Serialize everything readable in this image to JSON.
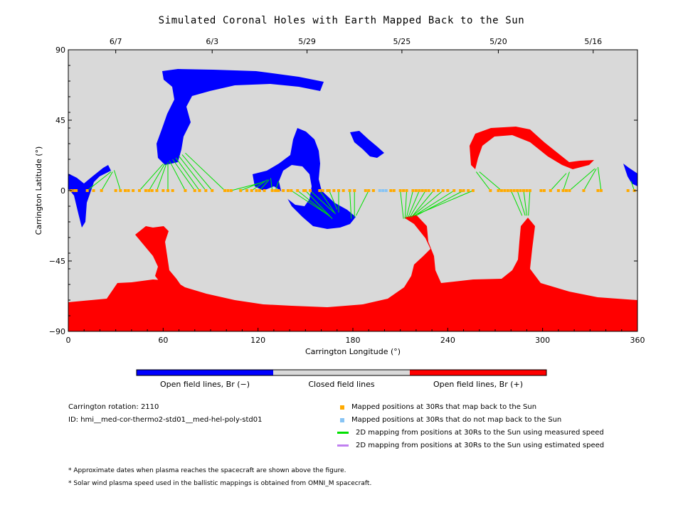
{
  "chart_data": {
    "type": "scatter",
    "title": "Simulated Coronal Holes with Earth Mapped Back to the Sun",
    "xlabel": "Carrington Longitude (°)",
    "ylabel": "Carrington Latitude (°)",
    "xlim": [
      0,
      360
    ],
    "ylim": [
      -90,
      90
    ],
    "x_ticks": [
      0,
      60,
      120,
      180,
      240,
      300,
      360
    ],
    "y_ticks": [
      90,
      45,
      0,
      -45,
      -90
    ],
    "y_tick_labels": [
      "90",
      "45",
      "0",
      "−45",
      "−90"
    ],
    "top_axis": {
      "ticks": [
        {
          "lon": 30,
          "label": "6/7"
        },
        {
          "lon": 91,
          "label": "6/3"
        },
        {
          "lon": 151,
          "label": "5/29"
        },
        {
          "lon": 211,
          "label": "5/25"
        },
        {
          "lon": 272,
          "label": "5/20"
        },
        {
          "lon": 332,
          "label": "5/16"
        }
      ]
    },
    "colors": {
      "background": "#d9d9d9",
      "negative": "#0000ff",
      "positive": "#ff0000",
      "mapped": "#ffaa00",
      "unmapped": "#88c4f4",
      "measured_line": "#00e000",
      "estimated_line": "#c080f0"
    },
    "mapped_points": [
      2,
      4,
      5,
      12,
      16,
      21,
      30,
      33,
      36,
      38,
      41,
      45,
      49,
      51,
      53,
      56,
      60,
      63,
      66,
      74,
      80,
      83,
      87,
      91,
      99,
      101,
      103,
      109,
      113,
      116,
      119,
      121,
      124,
      129,
      131,
      132,
      133,
      136,
      139,
      141,
      145,
      149,
      150,
      153,
      159,
      161,
      164,
      165,
      168,
      171,
      174,
      178,
      181,
      188,
      190,
      193,
      204,
      206,
      210,
      212,
      214,
      218,
      220,
      222,
      224,
      226,
      228,
      231,
      234,
      237,
      240,
      244,
      248,
      250,
      253,
      256,
      267,
      272,
      274,
      276,
      278,
      280,
      282,
      284,
      286,
      288,
      290,
      292,
      299,
      301,
      305,
      310,
      313,
      315,
      317,
      326,
      335,
      337,
      354,
      358
    ],
    "unmapped_points": [
      197,
      199,
      201
    ],
    "mappings": [
      {
        "from": [
          12,
          0
        ],
        "to": [
          27,
          12
        ]
      },
      {
        "from": [
          21,
          0
        ],
        "to": [
          28,
          12
        ]
      },
      {
        "from": [
          33,
          0
        ],
        "to": [
          29,
          13
        ]
      },
      {
        "from": [
          45,
          0
        ],
        "to": [
          60,
          17
        ]
      },
      {
        "from": [
          51,
          0
        ],
        "to": [
          61,
          17
        ]
      },
      {
        "from": [
          56,
          0
        ],
        "to": [
          62,
          17
        ]
      },
      {
        "from": [
          63,
          0
        ],
        "to": [
          63,
          18
        ]
      },
      {
        "from": [
          74,
          0
        ],
        "to": [
          64,
          19
        ]
      },
      {
        "from": [
          80,
          0
        ],
        "to": [
          66,
          20
        ]
      },
      {
        "from": [
          83,
          0
        ],
        "to": [
          68,
          21
        ]
      },
      {
        "from": [
          87,
          0
        ],
        "to": [
          70,
          22
        ]
      },
      {
        "from": [
          91,
          0
        ],
        "to": [
          72,
          23
        ]
      },
      {
        "from": [
          99,
          0
        ],
        "to": [
          74,
          24
        ]
      },
      {
        "from": [
          103,
          0
        ],
        "to": [
          122,
          5
        ]
      },
      {
        "from": [
          109,
          0
        ],
        "to": [
          124,
          6
        ]
      },
      {
        "from": [
          116,
          0
        ],
        "to": [
          126,
          7
        ]
      },
      {
        "from": [
          121,
          0
        ],
        "to": [
          127,
          7
        ]
      },
      {
        "from": [
          129,
          0
        ],
        "to": [
          128,
          8
        ]
      },
      {
        "from": [
          131,
          0
        ],
        "to": [
          133,
          6
        ]
      },
      {
        "from": [
          141,
          0
        ],
        "to": [
          165,
          -16
        ]
      },
      {
        "from": [
          145,
          0
        ],
        "to": [
          166,
          -17
        ]
      },
      {
        "from": [
          150,
          0
        ],
        "to": [
          167,
          -18
        ]
      },
      {
        "from": [
          153,
          0
        ],
        "to": [
          168,
          -14
        ]
      },
      {
        "from": [
          159,
          0
        ],
        "to": [
          169,
          -15
        ]
      },
      {
        "from": [
          165,
          0
        ],
        "to": [
          170,
          -12
        ]
      },
      {
        "from": [
          171,
          0
        ],
        "to": [
          171,
          -14
        ]
      },
      {
        "from": [
          178,
          0
        ],
        "to": [
          179,
          -18
        ]
      },
      {
        "from": [
          181,
          0
        ],
        "to": [
          181,
          -17
        ]
      },
      {
        "from": [
          190,
          0
        ],
        "to": [
          182,
          -16
        ]
      },
      {
        "from": [
          210,
          0
        ],
        "to": [
          212,
          -18
        ]
      },
      {
        "from": [
          214,
          0
        ],
        "to": [
          213,
          -18
        ]
      },
      {
        "from": [
          218,
          0
        ],
        "to": [
          214,
          -17
        ]
      },
      {
        "from": [
          222,
          0
        ],
        "to": [
          215,
          -17
        ]
      },
      {
        "from": [
          226,
          0
        ],
        "to": [
          216,
          -17
        ]
      },
      {
        "from": [
          231,
          0
        ],
        "to": [
          217,
          -17
        ]
      },
      {
        "from": [
          237,
          0
        ],
        "to": [
          218,
          -16
        ]
      },
      {
        "from": [
          244,
          0
        ],
        "to": [
          219,
          -16
        ]
      },
      {
        "from": [
          250,
          0
        ],
        "to": [
          220,
          -16
        ]
      },
      {
        "from": [
          256,
          0
        ],
        "to": [
          221,
          -15
        ]
      },
      {
        "from": [
          267,
          0
        ],
        "to": [
          258,
          12
        ]
      },
      {
        "from": [
          274,
          0
        ],
        "to": [
          260,
          12
        ]
      },
      {
        "from": [
          280,
          0
        ],
        "to": [
          287,
          -16
        ]
      },
      {
        "from": [
          284,
          0
        ],
        "to": [
          289,
          -16
        ]
      },
      {
        "from": [
          288,
          0
        ],
        "to": [
          290,
          -16
        ]
      },
      {
        "from": [
          292,
          0
        ],
        "to": [
          291,
          -16
        ]
      },
      {
        "from": [
          305,
          0
        ],
        "to": [
          315,
          11
        ]
      },
      {
        "from": [
          313,
          0
        ],
        "to": [
          317,
          12
        ]
      },
      {
        "from": [
          317,
          0
        ],
        "to": [
          333,
          14
        ]
      },
      {
        "from": [
          326,
          0
        ],
        "to": [
          334,
          14
        ]
      },
      {
        "from": [
          337,
          0
        ],
        "to": [
          335,
          15
        ]
      },
      {
        "from": [
          358,
          0
        ],
        "to": [
          356,
          6
        ]
      }
    ],
    "colorbar": [
      {
        "label": "Open field lines, Br (−)",
        "color": "#0000ff"
      },
      {
        "label": "Closed field lines",
        "color": "#d9d9d9"
      },
      {
        "label": "Open field lines, Br (+)",
        "color": "#ff0000"
      }
    ]
  },
  "info": {
    "rotation": "Carrington rotation: 2110",
    "id": "ID: hmi__med-cor-thermo2-std01__med-hel-poly-std01"
  },
  "legend": [
    {
      "label": "Mapped positions at 30Rs that map back to the Sun",
      "kind": "square",
      "color": "#ffaa00"
    },
    {
      "label": "Mapped positions at 30Rs that do not map back to the Sun",
      "kind": "square",
      "color": "#88c4f4"
    },
    {
      "label": "2D mapping from positions at 30Rs to the Sun using measured speed",
      "kind": "line",
      "color": "#00e000"
    },
    {
      "label": "2D mapping from positions at 30Rs to the Sun using estimated speed",
      "kind": "line",
      "color": "#c080f0"
    }
  ],
  "notes": [
    "* Approximate dates when plasma reaches the spacecraft are shown above the figure.",
    "* Solar wind plasma speed used in the ballistic mappings is obtained from OMNI_M spacecraft."
  ]
}
